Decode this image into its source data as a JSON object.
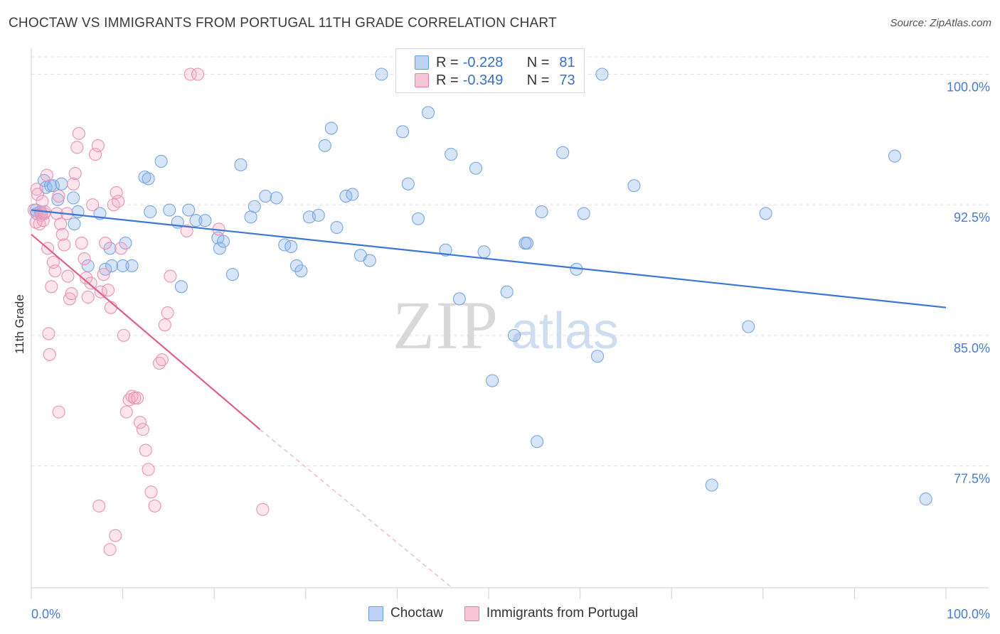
{
  "title": "CHOCTAW VS IMMIGRANTS FROM PORTUGAL 11TH GRADE CORRELATION CHART",
  "source": "Source: ZipAtlas.com",
  "watermark": {
    "zip": "ZIP",
    "atlas": "atlas"
  },
  "legend": [
    {
      "r_label": "R =",
      "r_value": "-0.228",
      "n_label": "N =",
      "n_value": "81",
      "color": "#6d9de0",
      "fill": "#bcd3f4"
    },
    {
      "r_label": "R =",
      "r_value": "-0.349",
      "n_label": "N =",
      "n_value": "73",
      "color": "#e87fa3",
      "fill": "#f7c6d6"
    }
  ],
  "bottom_legend": [
    "Choctaw",
    "Immigrants from Portugal"
  ],
  "chart_data": {
    "type": "scatter",
    "title": "CHOCTAW VS IMMIGRANTS FROM PORTUGAL 11TH GRADE CORRELATION CHART",
    "xlabel": "",
    "ylabel": "11th Grade",
    "xlim": [
      0,
      100
    ],
    "ylim": [
      70.5,
      101
    ],
    "x_tick_labels": [
      "0.0%",
      "100.0%"
    ],
    "y_ticks": [
      77.5,
      85.0,
      92.5,
      100.0
    ],
    "y_tick_labels": [
      "77.5%",
      "85.0%",
      "92.5%",
      "100.0%"
    ],
    "grid": true,
    "legend_position": "top-center",
    "series": [
      {
        "name": "Choctaw",
        "color": "#3a78d4",
        "trend": {
          "x": [
            0,
            100
          ],
          "y": [
            92.2,
            86.6
          ]
        },
        "points": [
          [
            0.5,
            92.2
          ],
          [
            0.6,
            92.0
          ],
          [
            1.0,
            92.1
          ],
          [
            1.1,
            92.0
          ],
          [
            1.4,
            93.9
          ],
          [
            1.6,
            93.5
          ],
          [
            2.1,
            93.6
          ],
          [
            2.4,
            93.6
          ],
          [
            2.9,
            92.8
          ],
          [
            3.3,
            93.7
          ],
          [
            4.6,
            92.9
          ],
          [
            4.7,
            91.4
          ],
          [
            5.1,
            92.1
          ],
          [
            6.2,
            89.0
          ],
          [
            7.5,
            92.0
          ],
          [
            8.1,
            88.8
          ],
          [
            8.6,
            90.0
          ],
          [
            8.8,
            89.0
          ],
          [
            10.0,
            89.0
          ],
          [
            10.3,
            90.3
          ],
          [
            11.0,
            89.0
          ],
          [
            12.4,
            94.1
          ],
          [
            12.8,
            94.0
          ],
          [
            13.0,
            92.1
          ],
          [
            14.2,
            95.0
          ],
          [
            15.1,
            92.2
          ],
          [
            16.0,
            91.5
          ],
          [
            16.4,
            87.8
          ],
          [
            17.2,
            92.2
          ],
          [
            18.0,
            91.6
          ],
          [
            19.0,
            91.6
          ],
          [
            20.4,
            90.6
          ],
          [
            20.6,
            90.0
          ],
          [
            21.0,
            90.4
          ],
          [
            22.0,
            88.5
          ],
          [
            22.9,
            94.8
          ],
          [
            24.0,
            91.8
          ],
          [
            24.4,
            92.4
          ],
          [
            25.6,
            93.0
          ],
          [
            26.8,
            92.9
          ],
          [
            27.7,
            90.2
          ],
          [
            28.4,
            90.1
          ],
          [
            29.0,
            89.0
          ],
          [
            29.5,
            88.7
          ],
          [
            30.4,
            91.8
          ],
          [
            31.4,
            91.9
          ],
          [
            32.1,
            95.9
          ],
          [
            32.8,
            96.9
          ],
          [
            33.4,
            91.2
          ],
          [
            34.4,
            93.0
          ],
          [
            35.1,
            93.1
          ],
          [
            36.0,
            89.6
          ],
          [
            37.0,
            89.3
          ],
          [
            38.3,
            100.0
          ],
          [
            40.6,
            96.7
          ],
          [
            41.2,
            93.7
          ],
          [
            42.3,
            91.7
          ],
          [
            43.4,
            97.8
          ],
          [
            45.3,
            89.9
          ],
          [
            45.9,
            95.4
          ],
          [
            46.8,
            87.1
          ],
          [
            48.6,
            94.6
          ],
          [
            49.5,
            89.8
          ],
          [
            50.4,
            82.4
          ],
          [
            52.0,
            87.5
          ],
          [
            52.8,
            85.0
          ],
          [
            54.0,
            90.3
          ],
          [
            54.2,
            90.3
          ],
          [
            55.3,
            78.9
          ],
          [
            55.8,
            92.1
          ],
          [
            58.1,
            95.5
          ],
          [
            59.6,
            88.8
          ],
          [
            60.4,
            92.0
          ],
          [
            61.9,
            83.8
          ],
          [
            62.4,
            100.0
          ],
          [
            65.9,
            93.6
          ],
          [
            78.4,
            85.5
          ],
          [
            80.3,
            92.0
          ],
          [
            94.4,
            95.3
          ],
          [
            97.8,
            75.6
          ],
          [
            74.4,
            76.4
          ]
        ]
      },
      {
        "name": "Immigrants from Portugal",
        "color": "#e0608c",
        "trend": {
          "x": [
            0,
            25
          ],
          "y": [
            90.8,
            79.6
          ]
        },
        "trend_dashed": {
          "x": [
            25,
            46
          ],
          "y": [
            79.6,
            70.5
          ]
        },
        "points": [
          [
            0.3,
            92.2
          ],
          [
            0.5,
            91.5
          ],
          [
            0.6,
            93.4
          ],
          [
            0.7,
            93.1
          ],
          [
            0.9,
            91.4
          ],
          [
            1.1,
            91.9
          ],
          [
            1.2,
            92.7
          ],
          [
            1.3,
            91.6
          ],
          [
            1.4,
            92.0
          ],
          [
            1.5,
            92.1
          ],
          [
            1.7,
            94.2
          ],
          [
            1.8,
            90.0
          ],
          [
            1.9,
            85.1
          ],
          [
            2.0,
            83.9
          ],
          [
            2.2,
            87.8
          ],
          [
            2.4,
            89.2
          ],
          [
            2.6,
            88.7
          ],
          [
            2.8,
            92.0
          ],
          [
            3.0,
            93.0
          ],
          [
            3.2,
            91.4
          ],
          [
            3.4,
            90.8
          ],
          [
            3.6,
            90.2
          ],
          [
            3.9,
            92.0
          ],
          [
            4.0,
            88.4
          ],
          [
            4.2,
            87.1
          ],
          [
            4.4,
            87.4
          ],
          [
            4.6,
            93.7
          ],
          [
            4.8,
            94.3
          ],
          [
            5.0,
            95.8
          ],
          [
            5.2,
            96.6
          ],
          [
            5.5,
            90.3
          ],
          [
            5.8,
            89.4
          ],
          [
            6.0,
            88.3
          ],
          [
            6.2,
            87.2
          ],
          [
            6.5,
            88.0
          ],
          [
            6.7,
            92.5
          ],
          [
            7.0,
            95.4
          ],
          [
            7.3,
            95.9
          ],
          [
            7.6,
            87.5
          ],
          [
            7.9,
            88.5
          ],
          [
            8.1,
            90.3
          ],
          [
            8.4,
            87.6
          ],
          [
            8.7,
            86.6
          ],
          [
            9.0,
            92.5
          ],
          [
            9.3,
            93.2
          ],
          [
            9.5,
            92.7
          ],
          [
            9.8,
            90.0
          ],
          [
            10.1,
            85.0
          ],
          [
            10.4,
            80.6
          ],
          [
            10.7,
            81.3
          ],
          [
            11.0,
            81.5
          ],
          [
            11.3,
            81.4
          ],
          [
            11.6,
            81.4
          ],
          [
            11.9,
            80.0
          ],
          [
            12.2,
            79.6
          ],
          [
            12.5,
            78.4
          ],
          [
            12.8,
            77.3
          ],
          [
            13.1,
            76.0
          ],
          [
            13.5,
            75.2
          ],
          [
            14.0,
            83.4
          ],
          [
            14.3,
            83.6
          ],
          [
            14.6,
            85.6
          ],
          [
            14.9,
            86.3
          ],
          [
            15.2,
            88.4
          ],
          [
            17.0,
            91.0
          ],
          [
            17.4,
            100.0
          ],
          [
            18.2,
            100.0
          ],
          [
            20.5,
            91.1
          ],
          [
            25.3,
            75.0
          ],
          [
            7.4,
            75.2
          ],
          [
            8.6,
            72.7
          ],
          [
            9.2,
            73.5
          ],
          [
            3.0,
            80.6
          ]
        ]
      }
    ]
  }
}
